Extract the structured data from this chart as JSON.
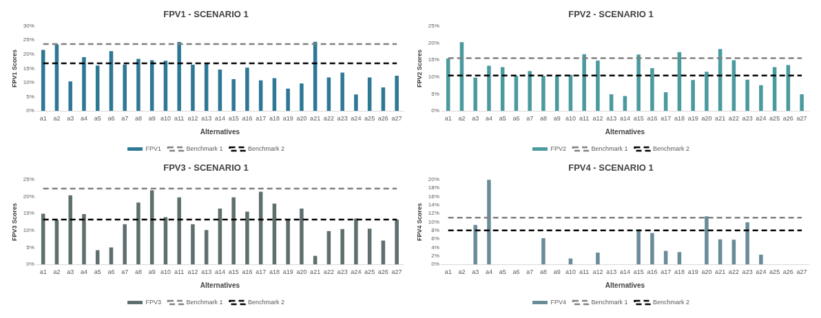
{
  "chart_data": [
    {
      "type": "bar",
      "title": "FPV1 - SCENARIO 1",
      "xlabel": "Alternatives",
      "ylabel": "FPV1 Scores",
      "categories": [
        "a1",
        "a2",
        "a3",
        "a4",
        "a5",
        "a6",
        "a7",
        "a8",
        "a9",
        "a10",
        "a11",
        "a12",
        "a13",
        "a14",
        "a15",
        "a16",
        "a17",
        "a18",
        "a19",
        "a20",
        "a21",
        "a22",
        "a23",
        "a24",
        "a25",
        "a26",
        "a27"
      ],
      "ylim": [
        0,
        30
      ],
      "yticks": [
        {
          "value": 0,
          "label": "0%"
        },
        {
          "value": 5,
          "label": "5%"
        },
        {
          "value": 10,
          "label": "10%"
        },
        {
          "value": 15,
          "label": "15%"
        },
        {
          "value": 20,
          "label": "20%"
        },
        {
          "value": 25,
          "label": "25%"
        },
        {
          "value": 30,
          "label": "30%"
        }
      ],
      "grid": false,
      "legend": "bottom",
      "series": [
        {
          "name": "FPV1",
          "color": "#2e7896",
          "values": [
            21.5,
            23.5,
            10.4,
            19.0,
            16.0,
            21.1,
            16.4,
            18.4,
            17.9,
            17.7,
            24.3,
            16.3,
            16.6,
            14.6,
            11.2,
            15.3,
            10.8,
            11.6,
            7.9,
            9.7,
            24.4,
            11.8,
            13.5,
            5.8,
            11.8,
            8.3,
            12.4
          ]
        },
        {
          "name": "Benchmark 1",
          "type": "line",
          "color": "#808080",
          "line_style": "dashed",
          "marker": "none",
          "values": [
            23.6,
            23.6,
            23.6,
            23.6,
            23.6,
            23.6,
            23.6,
            23.6,
            23.6,
            23.6,
            23.6,
            23.6,
            23.6,
            23.6,
            23.6,
            23.6,
            23.6,
            23.6,
            23.6,
            23.6,
            23.6,
            23.6,
            23.6,
            23.6,
            23.6,
            23.6,
            23.6
          ]
        },
        {
          "name": "Benchmark 2",
          "type": "line",
          "color": "#000000",
          "line_style": "dashed",
          "marker": "none",
          "values": [
            16.8,
            16.8,
            16.8,
            16.8,
            16.8,
            16.8,
            16.8,
            16.8,
            16.8,
            16.8,
            16.8,
            16.8,
            16.8,
            16.8,
            16.8,
            16.8,
            16.8,
            16.8,
            16.8,
            16.8,
            16.8,
            16.8,
            16.8,
            16.8,
            16.8,
            16.8,
            16.8
          ]
        }
      ]
    },
    {
      "type": "bar",
      "title": "FPV2 - SCENARIO 1",
      "xlabel": "Alternatives",
      "ylabel": "FPV2 Scores",
      "categories": [
        "a1",
        "a2",
        "a3",
        "a4",
        "a5",
        "a6",
        "a7",
        "a8",
        "a9",
        "a10",
        "a11",
        "a12",
        "a13",
        "a14",
        "a15",
        "a16",
        "a17",
        "a18",
        "a19",
        "a20",
        "a21",
        "a22",
        "a23",
        "a24",
        "a25",
        "a26",
        "a27"
      ],
      "ylim": [
        0,
        25
      ],
      "yticks": [
        {
          "value": 0,
          "label": "0%"
        },
        {
          "value": 5,
          "label": "5%"
        },
        {
          "value": 10,
          "label": "10%"
        },
        {
          "value": 15,
          "label": "15%"
        },
        {
          "value": 20,
          "label": "20%"
        },
        {
          "value": 25,
          "label": "25%"
        }
      ],
      "grid": false,
      "legend": "bottom",
      "series": [
        {
          "name": "FPV2",
          "color": "#4a9a9e",
          "values": [
            15.4,
            20.2,
            9.8,
            13.3,
            12.9,
            10.3,
            11.7,
            10.3,
            10.3,
            10.6,
            16.7,
            14.8,
            4.9,
            4.4,
            16.6,
            12.6,
            5.5,
            17.3,
            9.1,
            11.5,
            18.2,
            14.9,
            9.2,
            7.6,
            12.9,
            13.5,
            4.9
          ]
        },
        {
          "name": "Benchmark 1",
          "type": "line",
          "color": "#808080",
          "line_style": "dashed",
          "marker": "none",
          "values": [
            15.5,
            15.5,
            15.5,
            15.5,
            15.5,
            15.5,
            15.5,
            15.5,
            15.5,
            15.5,
            15.5,
            15.5,
            15.5,
            15.5,
            15.5,
            15.5,
            15.5,
            15.5,
            15.5,
            15.5,
            15.5,
            15.5,
            15.5,
            15.5,
            15.5,
            15.5,
            15.5
          ]
        },
        {
          "name": "Benchmark 2",
          "type": "line",
          "color": "#000000",
          "line_style": "dashed",
          "marker": "none",
          "values": [
            10.4,
            10.4,
            10.4,
            10.4,
            10.4,
            10.4,
            10.4,
            10.4,
            10.4,
            10.4,
            10.4,
            10.4,
            10.4,
            10.4,
            10.4,
            10.4,
            10.4,
            10.4,
            10.4,
            10.4,
            10.4,
            10.4,
            10.4,
            10.4,
            10.4,
            10.4,
            10.4
          ]
        }
      ]
    },
    {
      "type": "bar",
      "title": "FPV3 - SCENARIO 1",
      "xlabel": "Alternatives",
      "ylabel": "FPV3 Scores",
      "categories": [
        "a1",
        "a2",
        "a3",
        "a4",
        "a5",
        "a6",
        "a7",
        "a8",
        "a9",
        "a10",
        "a11",
        "a12",
        "a13",
        "a14",
        "a15",
        "a16",
        "a17",
        "a18",
        "a19",
        "a20",
        "a21",
        "a22",
        "a23",
        "a24",
        "a25",
        "a26",
        "a27"
      ],
      "ylim": [
        0,
        25
      ],
      "yticks": [
        {
          "value": 0,
          "label": "0%"
        },
        {
          "value": 5,
          "label": "5%"
        },
        {
          "value": 10,
          "label": "10%"
        },
        {
          "value": 15,
          "label": "15%"
        },
        {
          "value": 20,
          "label": "20%"
        },
        {
          "value": 25,
          "label": "25%"
        }
      ],
      "grid": false,
      "legend": "bottom",
      "series": [
        {
          "name": "FPV3",
          "color": "#5f6f6e",
          "values": [
            14.9,
            13.1,
            20.3,
            14.8,
            4.2,
            5.0,
            11.8,
            18.2,
            21.8,
            13.9,
            19.7,
            11.8,
            10.1,
            16.4,
            19.7,
            15.5,
            21.4,
            17.9,
            13.2,
            16.4,
            2.5,
            9.8,
            10.4,
            13.5,
            10.5,
            7.0,
            13.2
          ]
        },
        {
          "name": "Benchmark 1",
          "type": "line",
          "color": "#808080",
          "line_style": "dashed",
          "marker": "none",
          "values": [
            22.3,
            22.3,
            22.3,
            22.3,
            22.3,
            22.3,
            22.3,
            22.3,
            22.3,
            22.3,
            22.3,
            22.3,
            22.3,
            22.3,
            22.3,
            22.3,
            22.3,
            22.3,
            22.3,
            22.3,
            22.3,
            22.3,
            22.3,
            22.3,
            22.3,
            22.3,
            22.3
          ]
        },
        {
          "name": "Benchmark 2",
          "type": "line",
          "color": "#000000",
          "line_style": "dashed",
          "marker": "none",
          "values": [
            13.2,
            13.2,
            13.2,
            13.2,
            13.2,
            13.2,
            13.2,
            13.2,
            13.2,
            13.2,
            13.2,
            13.2,
            13.2,
            13.2,
            13.2,
            13.2,
            13.2,
            13.2,
            13.2,
            13.2,
            13.2,
            13.2,
            13.2,
            13.2,
            13.2,
            13.2,
            13.2
          ]
        }
      ]
    },
    {
      "type": "bar",
      "title": "FPV4 - SCENARIO 1",
      "xlabel": "Alternatives",
      "ylabel": "FPV4 Scores",
      "categories": [
        "a1",
        "a2",
        "a3",
        "a4",
        "a5",
        "a6",
        "a7",
        "a8",
        "a9",
        "a10",
        "a11",
        "a12",
        "a13",
        "a14",
        "a15",
        "a16",
        "a17",
        "a18",
        "a19",
        "a20",
        "a21",
        "a22",
        "a23",
        "a24",
        "a25",
        "a26",
        "a27"
      ],
      "ylim": [
        0,
        20
      ],
      "yticks": [
        {
          "value": 0,
          "label": "0%"
        },
        {
          "value": 2,
          "label": "2%"
        },
        {
          "value": 4,
          "label": "4%"
        },
        {
          "value": 6,
          "label": "6%"
        },
        {
          "value": 8,
          "label": "8%"
        },
        {
          "value": 10,
          "label": "10%"
        },
        {
          "value": 12,
          "label": "12%"
        },
        {
          "value": 14,
          "label": "14%"
        },
        {
          "value": 16,
          "label": "16%"
        },
        {
          "value": 18,
          "label": "18%"
        },
        {
          "value": 20,
          "label": "20%"
        }
      ],
      "grid": false,
      "legend": "bottom",
      "series": [
        {
          "name": "FPV4",
          "color": "#6a8c99",
          "values": [
            0,
            0,
            9.3,
            19.9,
            0,
            0,
            0,
            6.2,
            0,
            1.4,
            0,
            2.8,
            0,
            0,
            8.2,
            7.4,
            3.2,
            2.9,
            0,
            11.3,
            5.9,
            5.8,
            9.9,
            2.3,
            0,
            0,
            0
          ]
        },
        {
          "name": "Benchmark 1",
          "type": "line",
          "color": "#808080",
          "line_style": "dashed",
          "marker": "none",
          "values": [
            11.0,
            11.0,
            11.0,
            11.0,
            11.0,
            11.0,
            11.0,
            11.0,
            11.0,
            11.0,
            11.0,
            11.0,
            11.0,
            11.0,
            11.0,
            11.0,
            11.0,
            11.0,
            11.0,
            11.0,
            11.0,
            11.0,
            11.0,
            11.0,
            11.0,
            11.0,
            11.0
          ]
        },
        {
          "name": "Benchmark 2",
          "type": "line",
          "color": "#000000",
          "line_style": "dashed",
          "marker": "none",
          "values": [
            8.0,
            8.0,
            8.0,
            8.0,
            8.0,
            8.0,
            8.0,
            8.0,
            8.0,
            8.0,
            8.0,
            8.0,
            8.0,
            8.0,
            8.0,
            8.0,
            8.0,
            8.0,
            8.0,
            8.0,
            8.0,
            8.0,
            8.0,
            8.0,
            8.0,
            8.0,
            8.0
          ]
        }
      ]
    }
  ]
}
